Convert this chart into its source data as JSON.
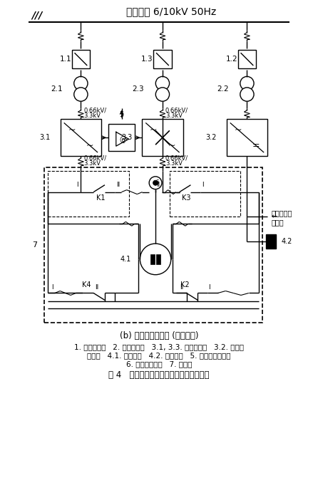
{
  "title": "供电电压 6/10kV 50Hz",
  "subtitle": "(b) 双绕组串联运行 (全载半速)",
  "caption": "图 4   双绕组低速同步机变频系统原理示意",
  "legend_line1": "1. 高压开关柜   2. 整流变压器   3.1, 3.3. 变功率单元   3.2. 励磁功",
  "legend_line2": "率单元   4.1. 定子绕组   4.2. 励磁绕组   5. 闭环矢量控制器",
  "legend_line3": "6. 绝对值解码器   7. 切换柜",
  "bg_color": "#ffffff",
  "line_color": "#000000"
}
